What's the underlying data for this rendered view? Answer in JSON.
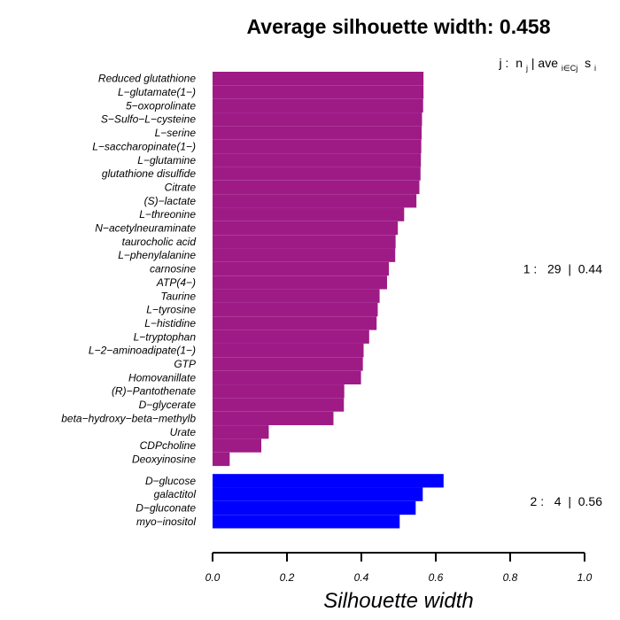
{
  "chart_data": {
    "type": "bar",
    "orientation": "horizontal",
    "title": "Average silhouette width: 0.458",
    "xlabel": "Silhouette width",
    "xlim": [
      0.0,
      1.0
    ],
    "xticks": [
      0.0,
      0.2,
      0.4,
      0.6,
      0.8,
      1.0
    ],
    "xtick_labels": [
      "0.0",
      "0.2",
      "0.4",
      "0.6",
      "0.8",
      "1.0"
    ],
    "legend_header": {
      "j": "j :",
      "n": "n",
      "n_sub": "j",
      "sep": " | ",
      "ave": "ave",
      "ave_sub": "i∈Cj",
      "s": "s",
      "s_sub": "i"
    },
    "clusters": [
      {
        "id": 1,
        "size": 29,
        "avg_width": 0.44,
        "summary_label": "1 :   29  |  0.44",
        "color": "#9E1B86",
        "items": [
          {
            "label": "Reduced glutathione",
            "value": 0.567
          },
          {
            "label": "L−glutamate(1−)",
            "value": 0.567
          },
          {
            "label": "5−oxoprolinate",
            "value": 0.566
          },
          {
            "label": "S−Sulfo−L−cysteine",
            "value": 0.563
          },
          {
            "label": "L−serine",
            "value": 0.562
          },
          {
            "label": "L−saccharopinate(1−)",
            "value": 0.561
          },
          {
            "label": "L−glutamine",
            "value": 0.56
          },
          {
            "label": "glutathione disulfide",
            "value": 0.559
          },
          {
            "label": "Citrate",
            "value": 0.556
          },
          {
            "label": "(S)−lactate",
            "value": 0.548
          },
          {
            "label": "L−threonine",
            "value": 0.515
          },
          {
            "label": "N−acetylneuraminate",
            "value": 0.498
          },
          {
            "label": "taurocholic acid",
            "value": 0.492
          },
          {
            "label": "L−phenylalanine",
            "value": 0.491
          },
          {
            "label": "carnosine",
            "value": 0.474
          },
          {
            "label": "ATP(4−)",
            "value": 0.469
          },
          {
            "label": "Taurine",
            "value": 0.449
          },
          {
            "label": "L−tyrosine",
            "value": 0.444
          },
          {
            "label": "L−histidine",
            "value": 0.441
          },
          {
            "label": "L−tryptophan",
            "value": 0.421
          },
          {
            "label": "L−2−aminoadipate(1−)",
            "value": 0.406
          },
          {
            "label": "GTP",
            "value": 0.404
          },
          {
            "label": "Homovanillate",
            "value": 0.399
          },
          {
            "label": "(R)−Pantothenate",
            "value": 0.354
          },
          {
            "label": "D−glycerate",
            "value": 0.353
          },
          {
            "label": "beta−hydroxy−beta−methylb",
            "value": 0.325
          },
          {
            "label": "Urate",
            "value": 0.151
          },
          {
            "label": "CDPcholine",
            "value": 0.131
          },
          {
            "label": "Deoxyinosine",
            "value": 0.046
          }
        ]
      },
      {
        "id": 2,
        "size": 4,
        "avg_width": 0.56,
        "summary_label": "2 :   4  |  0.56",
        "color": "#0000FF",
        "items": [
          {
            "label": "D−glucose",
            "value": 0.621
          },
          {
            "label": "galactitol",
            "value": 0.565
          },
          {
            "label": "D−gluconate",
            "value": 0.546
          },
          {
            "label": "myo−inositol",
            "value": 0.503
          }
        ]
      }
    ],
    "grid": false,
    "legend": "none"
  }
}
